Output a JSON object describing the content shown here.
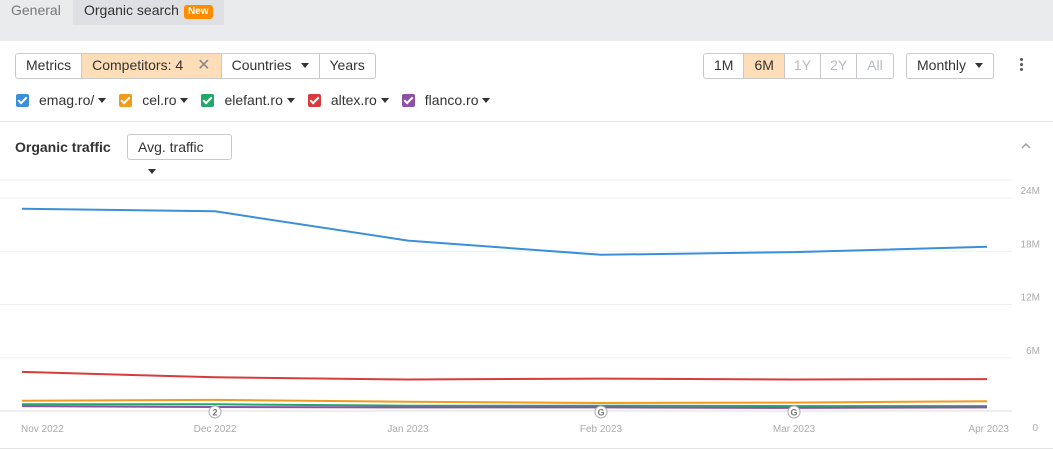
{
  "tabs": [
    {
      "label": "General"
    },
    {
      "label": "Organic search",
      "badge": "New"
    }
  ],
  "filters": {
    "metrics": "Metrics",
    "competitors": "Competitors: 4",
    "countries": "Countries",
    "years": "Years"
  },
  "periods": {
    "items": [
      "1M",
      "6M",
      "1Y",
      "2Y",
      "All"
    ],
    "active": "6M"
  },
  "granularity": "Monthly",
  "legend": [
    {
      "label": "emag.ro/",
      "color": "#3b8fd9"
    },
    {
      "label": "cel.ro",
      "color": "#f29a1b"
    },
    {
      "label": "elefant.ro",
      "color": "#1fa86a"
    },
    {
      "label": "altex.ro",
      "color": "#d93b3b"
    },
    {
      "label": "flanco.ro",
      "color": "#8e4fa5"
    }
  ],
  "panel": {
    "title": "Organic traffic",
    "metric_select": "Avg. traffic"
  },
  "chart_data": {
    "type": "line",
    "x": [
      "Nov 2022",
      "Dec 2022",
      "Jan 2023",
      "Feb 2023",
      "Mar 2023",
      "Apr 2023"
    ],
    "y_ticks": [
      "0",
      "6M",
      "12M",
      "18M",
      "24M"
    ],
    "ylim": [
      0,
      24000000
    ],
    "y_axis_side": "right",
    "grid": true,
    "series": [
      {
        "name": "emag.ro/",
        "color": "#3b8fd9",
        "values": [
          22800000,
          22500000,
          19200000,
          17600000,
          17900000,
          18500000
        ]
      },
      {
        "name": "cel.ro",
        "color": "#f29a1b",
        "values": [
          1150000,
          1250000,
          1050000,
          900000,
          950000,
          1100000
        ]
      },
      {
        "name": "elefant.ro",
        "color": "#1fa86a",
        "values": [
          750000,
          750000,
          600000,
          600000,
          550000,
          550000
        ]
      },
      {
        "name": "altex.ro",
        "color": "#d93b3b",
        "values": [
          4400000,
          3800000,
          3550000,
          3650000,
          3550000,
          3600000
        ]
      },
      {
        "name": "flanco.ro",
        "color": "#8e4fa5",
        "values": [
          550000,
          450000,
          400000,
          400000,
          350000,
          400000
        ]
      }
    ],
    "annotations": [
      {
        "x": "Dec 2022",
        "label": "2"
      },
      {
        "x": "Feb 2023",
        "label": "G"
      },
      {
        "x": "Mar 2023",
        "label": "G"
      }
    ]
  }
}
